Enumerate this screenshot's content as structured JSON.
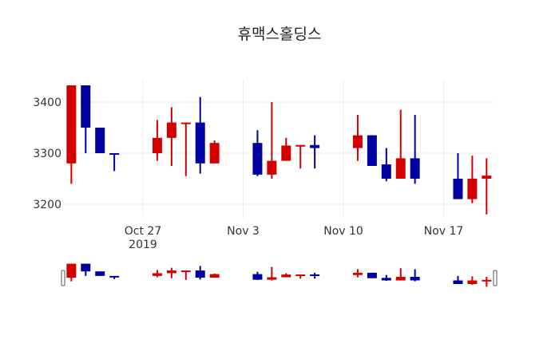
{
  "title": "휴맥스홀딩스",
  "colors": {
    "increasing": "#d40000",
    "decreasing": "#0000a0",
    "grid": "#eeeeee"
  },
  "chart_data": {
    "type": "candlestick",
    "title": "휴맥스홀딩스",
    "xlabel": "",
    "ylabel": "",
    "ylim": [
      3175,
      3433
    ],
    "xlim": [
      "2019-10-21 12:00",
      "2019-11-20 12:00"
    ],
    "y_ticks": [
      3200,
      3300,
      3400
    ],
    "x_ticks": [
      {
        "date": "2019-10-27",
        "label": "Oct 27",
        "sublabel": "2019"
      },
      {
        "date": "2019-11-03",
        "label": "Nov 3"
      },
      {
        "date": "2019-11-10",
        "label": "Nov 10"
      },
      {
        "date": "2019-11-17",
        "label": "Nov 17"
      }
    ],
    "grid": true,
    "rangeslider": true,
    "candles": [
      {
        "date": "2019-10-22",
        "open": 3280,
        "high": 3435,
        "low": 3240,
        "close": 3435
      },
      {
        "date": "2019-10-23",
        "open": 3435,
        "high": 3435,
        "low": 3300,
        "close": 3350
      },
      {
        "date": "2019-10-24",
        "open": 3350,
        "high": 3350,
        "low": 3300,
        "close": 3300
      },
      {
        "date": "2019-10-25",
        "open": 3300,
        "high": 3300,
        "low": 3265,
        "close": 3298
      },
      {
        "date": "2019-10-28",
        "open": 3300,
        "high": 3365,
        "low": 3285,
        "close": 3330
      },
      {
        "date": "2019-10-29",
        "open": 3330,
        "high": 3390,
        "low": 3275,
        "close": 3360
      },
      {
        "date": "2019-10-30",
        "open": 3357,
        "high": 3360,
        "low": 3255,
        "close": 3360
      },
      {
        "date": "2019-10-31",
        "open": 3360,
        "high": 3410,
        "low": 3260,
        "close": 3280
      },
      {
        "date": "2019-11-01",
        "open": 3280,
        "high": 3325,
        "low": 3280,
        "close": 3320
      },
      {
        "date": "2019-11-04",
        "open": 3320,
        "high": 3345,
        "low": 3255,
        "close": 3258
      },
      {
        "date": "2019-11-05",
        "open": 3258,
        "high": 3400,
        "low": 3250,
        "close": 3285
      },
      {
        "date": "2019-11-06",
        "open": 3285,
        "high": 3330,
        "low": 3285,
        "close": 3315
      },
      {
        "date": "2019-11-07",
        "open": 3313,
        "high": 3316,
        "low": 3270,
        "close": 3316
      },
      {
        "date": "2019-11-08",
        "open": 3316,
        "high": 3335,
        "low": 3270,
        "close": 3310
      },
      {
        "date": "2019-11-11",
        "open": 3310,
        "high": 3375,
        "low": 3285,
        "close": 3335
      },
      {
        "date": "2019-11-12",
        "open": 3335,
        "high": 3335,
        "low": 3275,
        "close": 3275
      },
      {
        "date": "2019-11-13",
        "open": 3278,
        "high": 3310,
        "low": 3245,
        "close": 3250
      },
      {
        "date": "2019-11-14",
        "open": 3250,
        "high": 3385,
        "low": 3250,
        "close": 3290
      },
      {
        "date": "2019-11-15",
        "open": 3290,
        "high": 3375,
        "low": 3240,
        "close": 3250
      },
      {
        "date": "2019-11-18",
        "open": 3250,
        "high": 3300,
        "low": 3210,
        "close": 3210
      },
      {
        "date": "2019-11-19",
        "open": 3210,
        "high": 3295,
        "low": 3202,
        "close": 3250
      },
      {
        "date": "2019-11-20",
        "open": 3250,
        "high": 3290,
        "low": 3180,
        "close": 3256
      }
    ]
  }
}
